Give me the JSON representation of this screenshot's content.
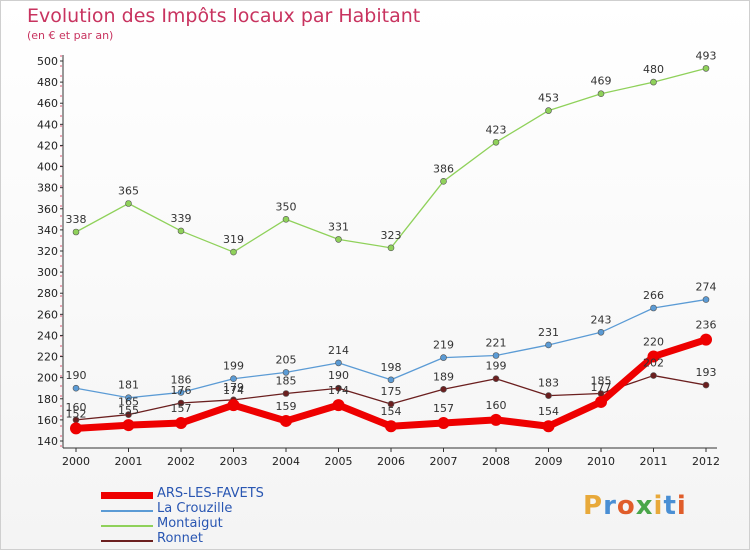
{
  "title": "Evolution des Impôts locaux par Habitant",
  "subtitle": "(en € et par an)",
  "logo": {
    "text": "Proxiti",
    "colors": [
      "#e8a93a",
      "#4a8fd4",
      "#e05d2a",
      "#4aa64a",
      "#e8a93a",
      "#4a8fd4",
      "#e05d2a"
    ]
  },
  "chart_data": {
    "type": "line",
    "x": [
      "2000",
      "2001",
      "2002",
      "2003",
      "2004",
      "2005",
      "2006",
      "2007",
      "2008",
      "2009",
      "2010",
      "2011",
      "2012"
    ],
    "ylim": [
      140,
      500
    ],
    "yticks": [
      140,
      160,
      180,
      200,
      220,
      240,
      260,
      280,
      300,
      320,
      340,
      360,
      380,
      400,
      420,
      440,
      460,
      480,
      500
    ],
    "grid": false,
    "legend_position": "bottom-left",
    "series": [
      {
        "name": "ARS-LES-FAVETS",
        "color": "#ee0000",
        "values": [
          152,
          155,
          157,
          174,
          159,
          174,
          154,
          157,
          160,
          154,
          177,
          220,
          236
        ]
      },
      {
        "name": "La Crouzille",
        "color": "#5b9bd5",
        "values": [
          190,
          181,
          186,
          199,
          205,
          214,
          198,
          219,
          221,
          231,
          243,
          266,
          274
        ]
      },
      {
        "name": "Montaigut",
        "color": "#8fd15a",
        "values": [
          338,
          365,
          339,
          319,
          350,
          331,
          323,
          386,
          423,
          453,
          469,
          480,
          493
        ]
      },
      {
        "name": "Ronnet",
        "color": "#6b1f1f",
        "values": [
          160,
          165,
          176,
          179,
          185,
          190,
          175,
          189,
          199,
          183,
          185,
          202,
          193
        ]
      }
    ]
  }
}
